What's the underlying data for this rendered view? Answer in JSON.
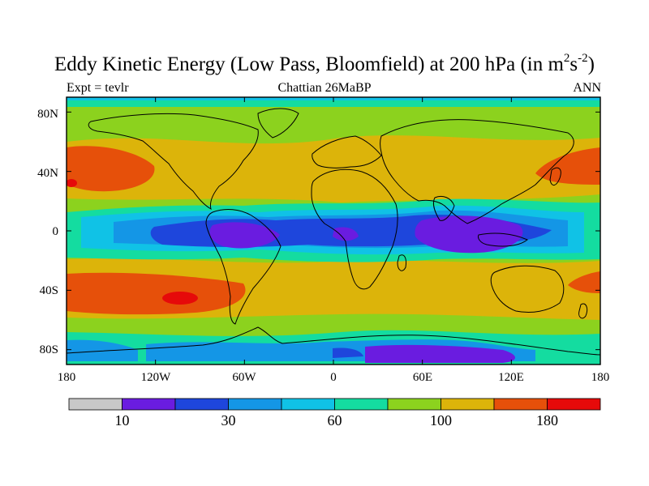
{
  "figure": {
    "title_main": "Eddy Kinetic Energy (Low Pass, Bloomfield) at 200 hPa (in m",
    "title_sup1": "2",
    "title_mid": "s",
    "title_sup2": "-2",
    "title_end": ")",
    "left_label": "Expt = tevlr",
    "center_label": "Chattian  26MaBP",
    "right_label": "ANN"
  },
  "map": {
    "projection": "cylindrical-equidistant",
    "lon_range": [
      -180,
      180
    ],
    "lat_range": [
      -90,
      90
    ],
    "y_ticks": [
      "80N",
      "40N",
      "0",
      "40S",
      "80S"
    ],
    "x_ticks": [
      "180",
      "120W",
      "60W",
      "0",
      "60E",
      "120E",
      "180"
    ]
  },
  "colorbar": {
    "colors": [
      "#c8c8c8",
      "#6a1ce0",
      "#1e46dc",
      "#1496e6",
      "#10c2e6",
      "#14dca0",
      "#8cd21e",
      "#dcb40a",
      "#e6500a",
      "#e60a0a"
    ],
    "labels": [
      {
        "text": "10",
        "boundary": 2
      },
      {
        "text": "30",
        "boundary": 4
      },
      {
        "text": "60",
        "boundary": 6
      },
      {
        "text": "100",
        "boundary": 8
      },
      {
        "text": "180",
        "boundary": 10
      }
    ]
  }
}
